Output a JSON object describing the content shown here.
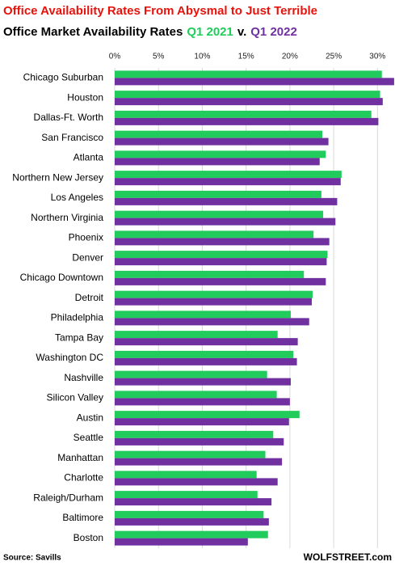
{
  "chart_data": {
    "type": "bar",
    "orientation": "horizontal",
    "title": "Office Availability Rates From Abysmal to Just Terrible",
    "subtitle": "Office Market Availability Rates",
    "subtitle_joiner": "v.",
    "categories": [
      "Chicago Suburban",
      "Houston",
      "Dallas-Ft. Worth",
      "San Francisco",
      "Atlanta",
      "Northern New Jersey",
      "Los Angeles",
      "Northern Virginia",
      "Phoenix",
      "Denver",
      "Chicago Downtown",
      "Detroit",
      "Philadelphia",
      "Tampa Bay",
      "Washington DC",
      "Nashville",
      "Silicon Valley",
      "Austin",
      "Seattle",
      "Manhattan",
      "Charlotte",
      "Raleigh/Durham",
      "Baltimore",
      "Boston"
    ],
    "series": [
      {
        "name": "Q1 2021",
        "color": "#22cc5c",
        "values": [
          30.5,
          30.3,
          29.3,
          23.7,
          24.1,
          25.9,
          23.6,
          23.8,
          22.7,
          24.3,
          21.6,
          22.6,
          20.1,
          18.6,
          20.4,
          17.4,
          18.5,
          21.1,
          18.1,
          17.2,
          16.2,
          16.3,
          17.0,
          17.5
        ]
      },
      {
        "name": "Q1 2022",
        "color": "#7030a0",
        "values": [
          31.9,
          30.6,
          30.1,
          24.4,
          23.4,
          25.8,
          25.4,
          25.2,
          24.5,
          24.2,
          24.1,
          22.5,
          22.2,
          20.9,
          20.8,
          20.1,
          20.0,
          19.9,
          19.3,
          19.1,
          18.6,
          17.9,
          17.6,
          15.2
        ]
      }
    ],
    "xlim": [
      0,
      32
    ],
    "xticks": [
      {
        "value": 0,
        "label": "0%"
      },
      {
        "value": 5,
        "label": "5%"
      },
      {
        "value": 10,
        "label": "10%"
      },
      {
        "value": 15,
        "label": "15%"
      },
      {
        "value": 20,
        "label": "20%"
      },
      {
        "value": 25,
        "label": "25%"
      },
      {
        "value": 30,
        "label": "30%"
      }
    ],
    "grid": true,
    "source": "Source: Savills",
    "watermark": "WOLFSTREET.com"
  }
}
